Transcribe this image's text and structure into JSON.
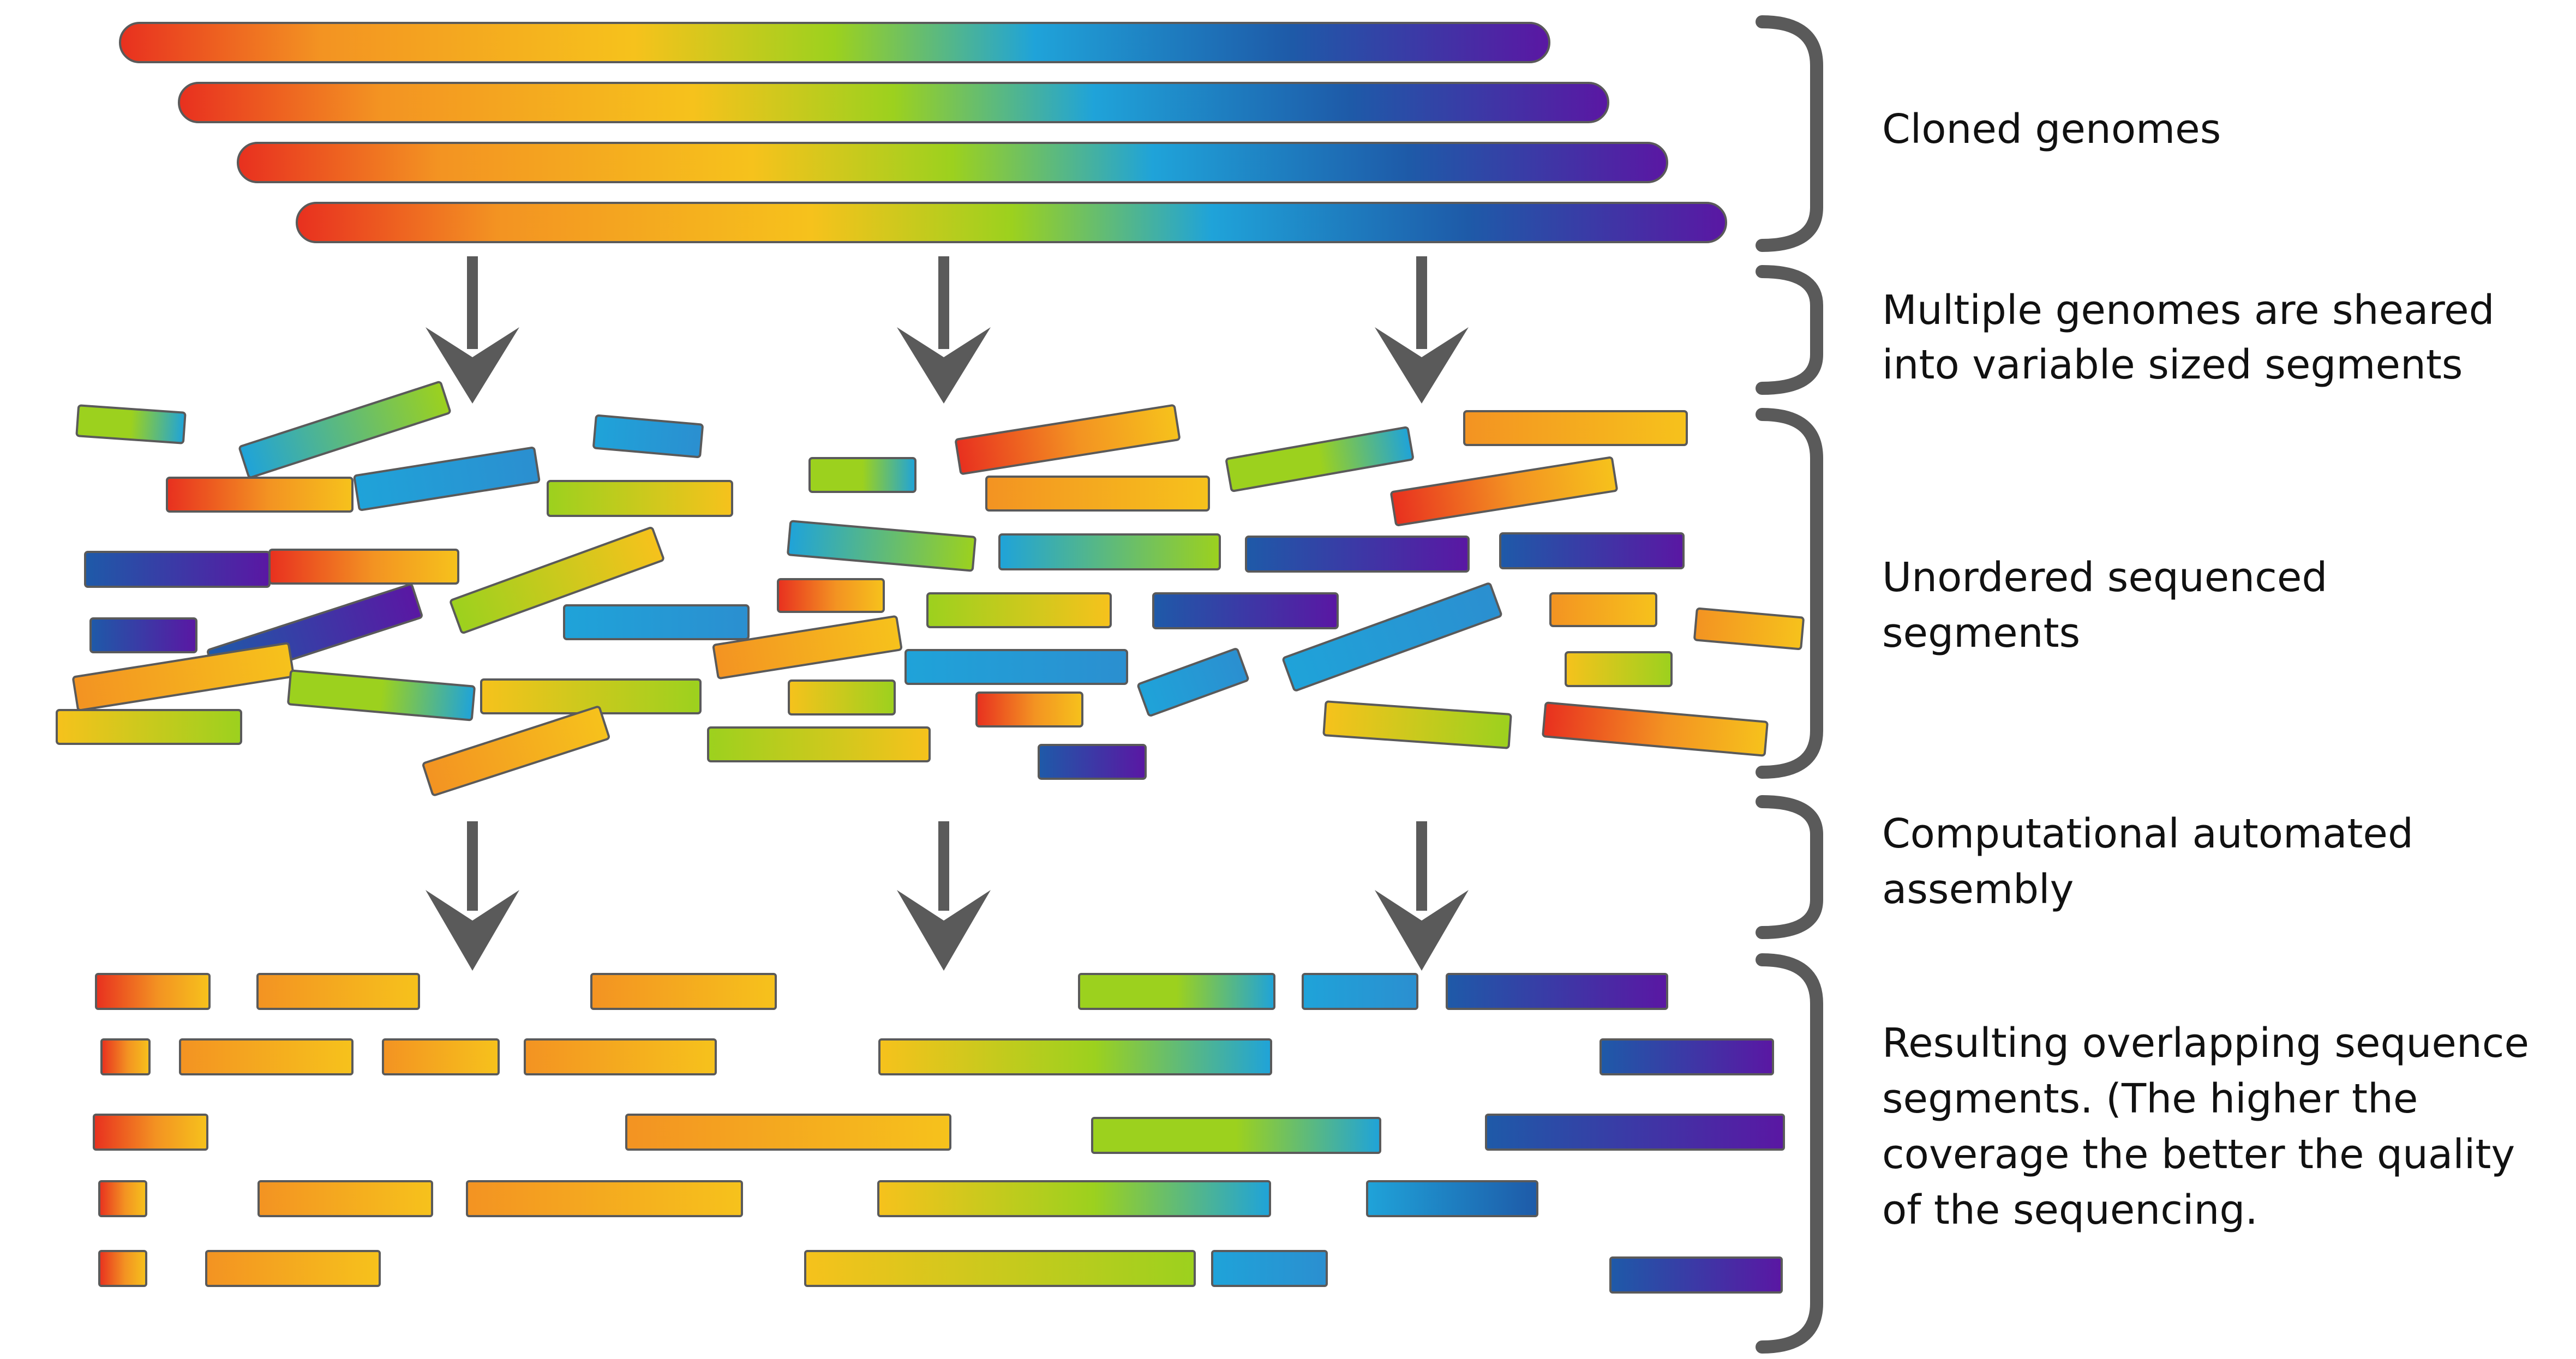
{
  "colors": {
    "red": "#e8301f",
    "orange": "#f39322",
    "yellow": "#f6c21c",
    "green": "#9cd11e",
    "cyan": "#1fa3d9",
    "blue": "#1e5aa8",
    "purple": "#5a17a3",
    "outline": "#5a5a5a",
    "text": "#111111"
  },
  "labels": {
    "cloned_genomes": [
      "Cloned genomes"
    ],
    "sheared": [
      "Multiple genomes are sheared",
      "into variable sized segments"
    ],
    "unordered": [
      "Unordered sequenced",
      "segments"
    ],
    "assembly": [
      "Computational automated",
      "assembly"
    ],
    "resulting": [
      "Resulting overlapping sequence",
      "segments. (The higher the",
      "coverage the better the quality",
      "of the sequencing."
    ]
  },
  "stages": [
    {
      "name": "cloned-genomes",
      "label_key": "cloned_genomes"
    },
    {
      "name": "shearing",
      "label_key": "sheared"
    },
    {
      "name": "unordered-segments",
      "label_key": "unordered"
    },
    {
      "name": "assembly",
      "label_key": "assembly"
    },
    {
      "name": "overlapping-segments",
      "label_key": "resulting"
    }
  ]
}
